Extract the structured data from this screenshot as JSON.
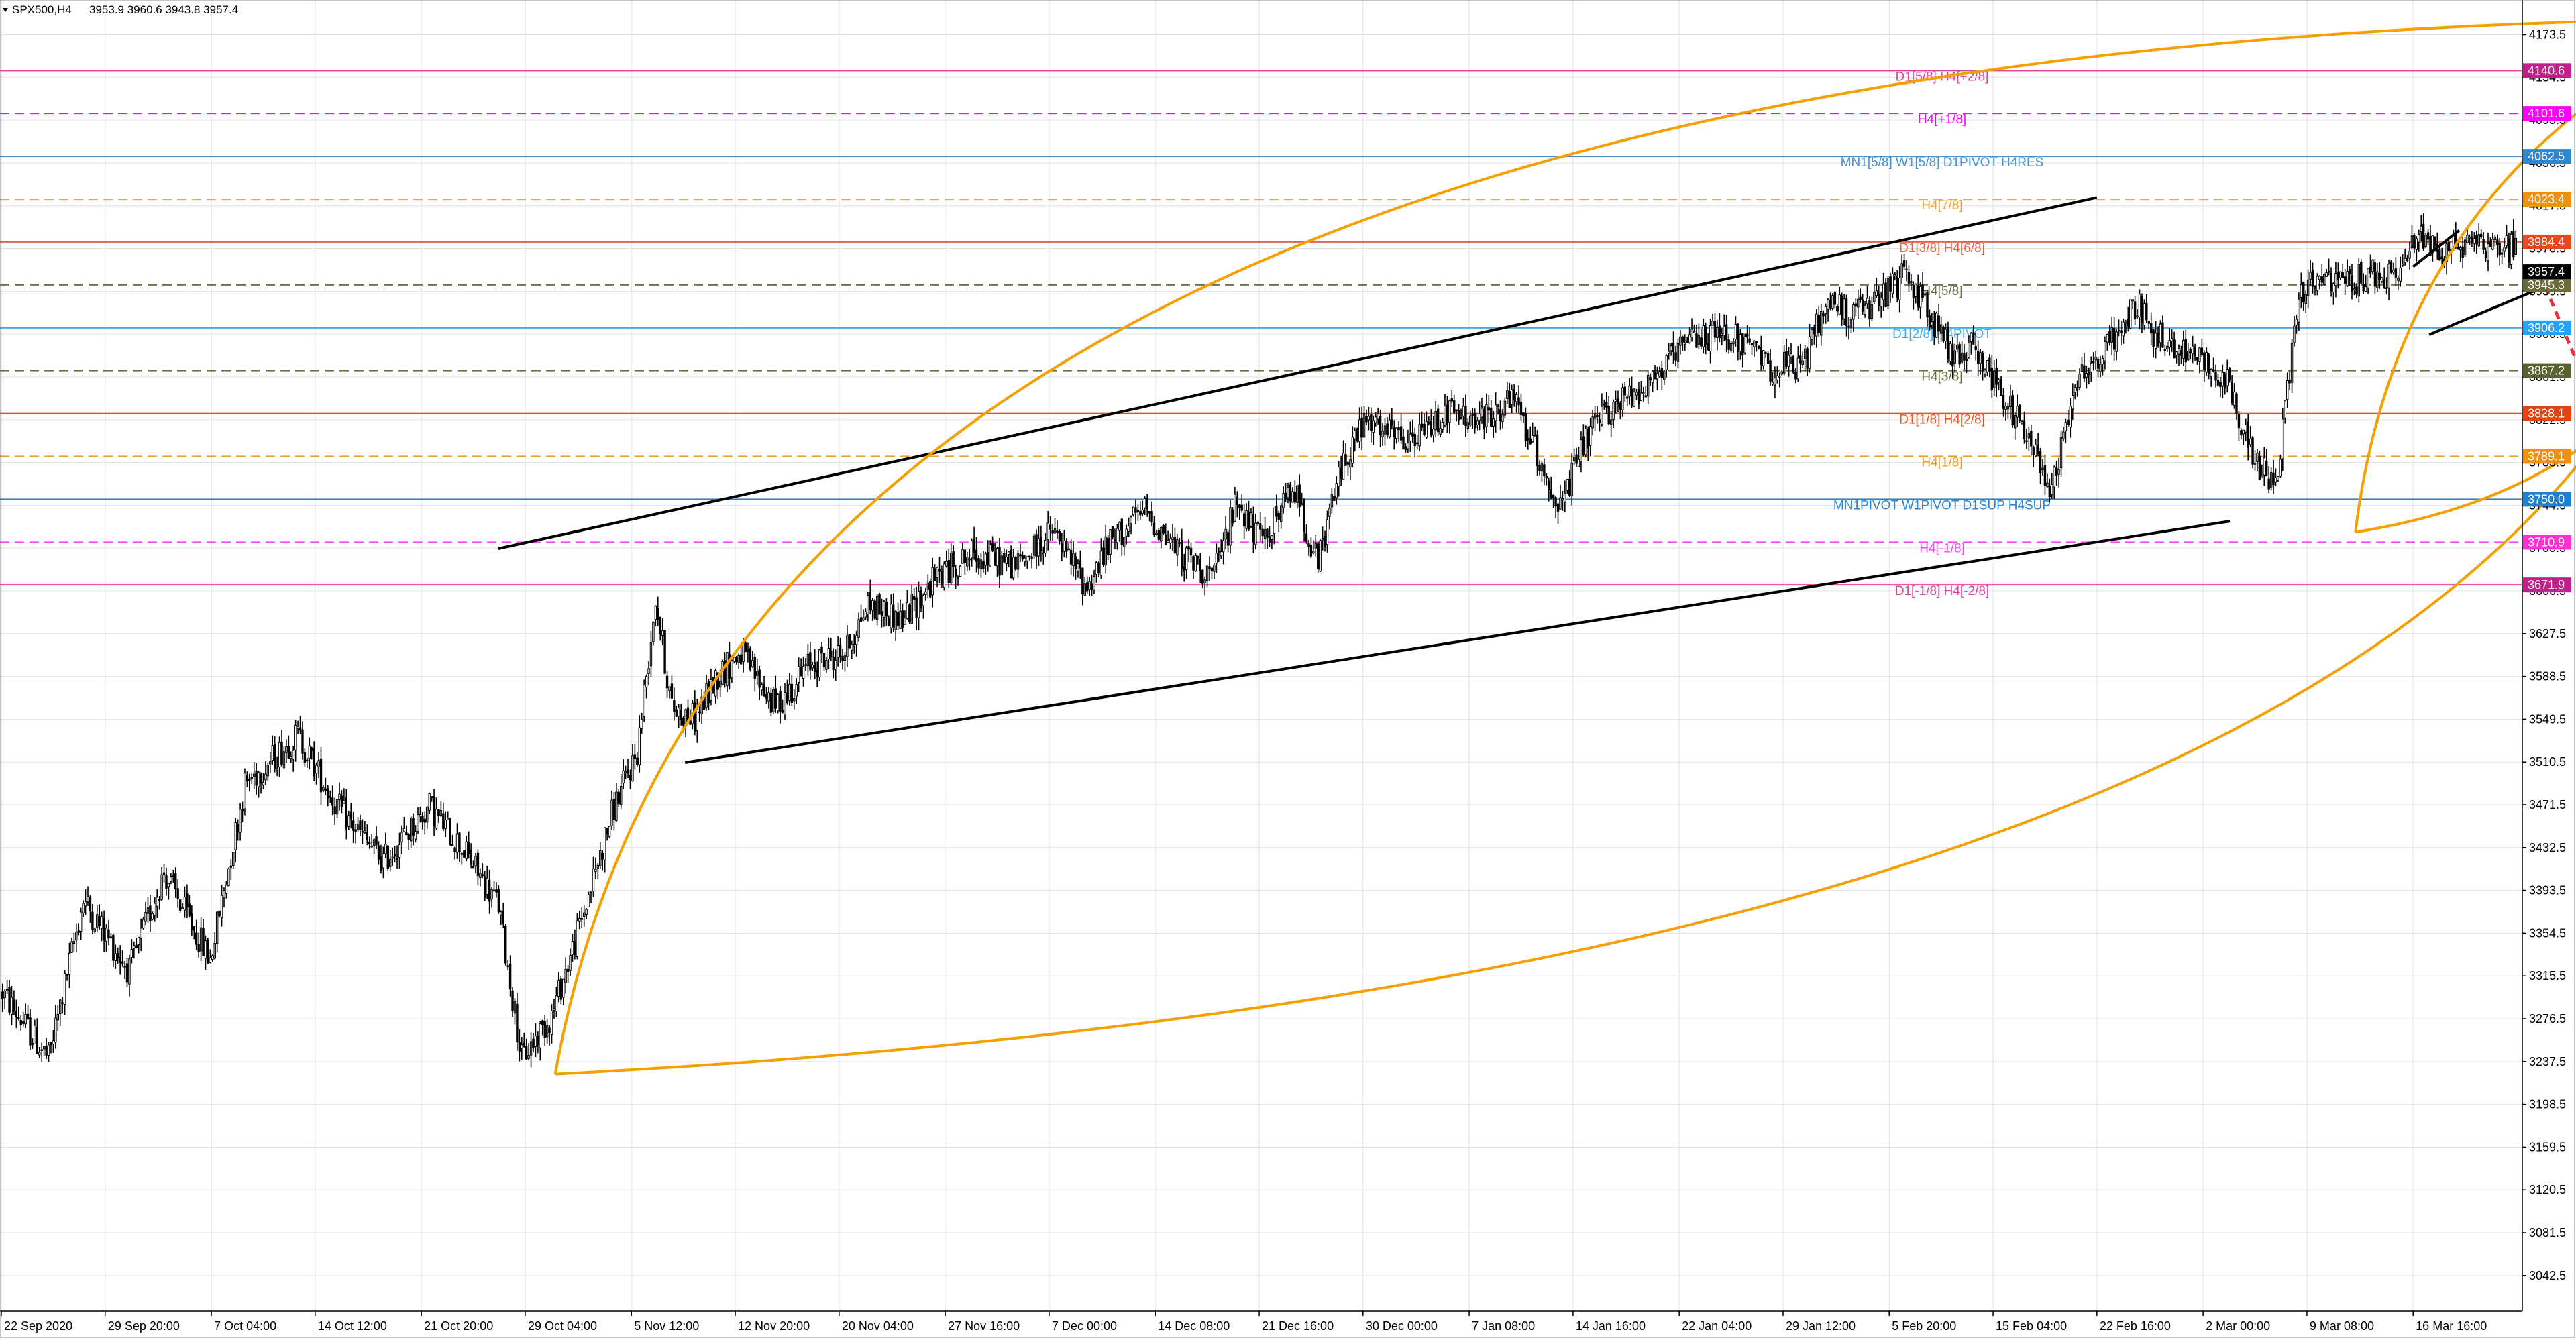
{
  "header": {
    "symbol_timeframe": "SPX500,H4",
    "ohlc": "3953.9 3960.6 3943.8 3957.4"
  },
  "chart_data": {
    "type": "candlestick",
    "symbol": "SPX500",
    "timeframe": "H4",
    "last_bar": {
      "open": 3953.9,
      "high": 3960.6,
      "low": 3943.8,
      "close": 3957.4
    },
    "current_price": 3957.4,
    "ylim": [
      3010,
      4205
    ],
    "price_scale_ticks": [
      4173.5,
      4134.5,
      4095.5,
      4056.5,
      4017.5,
      3978.5,
      3939.5,
      3900.5,
      3861.5,
      3822.5,
      3783.5,
      3744.5,
      3705.5,
      3666.5,
      3627.5,
      3588.5,
      3549.5,
      3510.5,
      3471.5,
      3432.5,
      3393.5,
      3354.5,
      3315.5,
      3276.5,
      3237.5,
      3198.5,
      3159.5,
      3120.5,
      3081.5,
      3042.5
    ],
    "time_labels": [
      "22 Sep 2020",
      "29 Sep 20:00",
      "7 Oct 04:00",
      "14 Oct 12:00",
      "21 Oct 20:00",
      "29 Oct 04:00",
      "5 Nov 12:00",
      "12 Nov 20:00",
      "20 Nov 04:00",
      "27 Nov 16:00",
      "7 Dec 00:00",
      "14 Dec 08:00",
      "21 Dec 16:00",
      "30 Dec 00:00",
      "7 Jan 08:00",
      "14 Jan 16:00",
      "22 Jan 04:00",
      "29 Jan 12:00",
      "5 Feb 20:00",
      "15 Feb 04:00",
      "22 Feb 16:00",
      "2 Mar 00:00",
      "9 Mar 08:00",
      "16 Mar 16:00"
    ],
    "price_path": [
      [
        0,
        3300
      ],
      [
        20,
        3240
      ],
      [
        35,
        3385
      ],
      [
        55,
        3320
      ],
      [
        70,
        3410
      ],
      [
        90,
        3330
      ],
      [
        105,
        3490
      ],
      [
        128,
        3535
      ],
      [
        145,
        3470
      ],
      [
        165,
        3420
      ],
      [
        185,
        3470
      ],
      [
        200,
        3430
      ],
      [
        215,
        3380
      ],
      [
        225,
        3240
      ],
      [
        238,
        3280
      ],
      [
        250,
        3360
      ],
      [
        265,
        3470
      ],
      [
        275,
        3520
      ],
      [
        283,
        3660
      ],
      [
        290,
        3560
      ],
      [
        300,
        3550
      ],
      [
        310,
        3590
      ],
      [
        320,
        3610
      ],
      [
        335,
        3560
      ],
      [
        350,
        3600
      ],
      [
        365,
        3610
      ],
      [
        375,
        3655
      ],
      [
        390,
        3640
      ],
      [
        405,
        3680
      ],
      [
        420,
        3700
      ],
      [
        440,
        3690
      ],
      [
        455,
        3720
      ],
      [
        470,
        3670
      ],
      [
        480,
        3710
      ],
      [
        495,
        3740
      ],
      [
        510,
        3700
      ],
      [
        525,
        3680
      ],
      [
        535,
        3750
      ],
      [
        545,
        3710
      ],
      [
        560,
        3760
      ],
      [
        570,
        3690
      ],
      [
        580,
        3780
      ],
      [
        590,
        3820
      ],
      [
        610,
        3800
      ],
      [
        625,
        3830
      ],
      [
        640,
        3820
      ],
      [
        655,
        3840
      ],
      [
        665,
        3790
      ],
      [
        675,
        3740
      ],
      [
        685,
        3800
      ],
      [
        695,
        3830
      ],
      [
        715,
        3860
      ],
      [
        735,
        3900
      ],
      [
        750,
        3900
      ],
      [
        765,
        3870
      ],
      [
        780,
        3870
      ],
      [
        790,
        3930
      ],
      [
        800,
        3920
      ],
      [
        810,
        3925
      ],
      [
        825,
        3955
      ],
      [
        835,
        3920
      ],
      [
        845,
        3880
      ],
      [
        855,
        3890
      ],
      [
        865,
        3850
      ],
      [
        870,
        3830
      ],
      [
        880,
        3800
      ],
      [
        888,
        3760
      ],
      [
        898,
        3860
      ],
      [
        910,
        3880
      ],
      [
        925,
        3930
      ],
      [
        930,
        3905
      ],
      [
        940,
        3890
      ],
      [
        955,
        3875
      ],
      [
        965,
        3855
      ],
      [
        975,
        3790
      ],
      [
        985,
        3760
      ],
      [
        995,
        3940
      ],
      [
        1005,
        3950
      ],
      [
        1015,
        3945
      ],
      [
        1025,
        3955
      ],
      [
        1035,
        3950
      ],
      [
        1048,
        3990
      ],
      [
        1060,
        3975
      ],
      [
        1070,
        3990
      ],
      [
        1080,
        3980
      ]
    ],
    "channel_upper": {
      "from": [
        "29 Oct 04:00",
        3705
      ],
      "to": [
        "22 Feb 16:00",
        4025
      ]
    },
    "channel_lower": {
      "from": [
        "5 Nov 12:00",
        3510
      ],
      "to": [
        "2 Mar 00:00",
        3730
      ]
    },
    "levels": [
      {
        "price": 4140.6,
        "label": "D1[5/8] H4[+2/8]",
        "color": "#e040a0",
        "dashed": false,
        "tag": "4140.6",
        "tag_bg": "#c0208a"
      },
      {
        "price": 4101.6,
        "label": "H4[+1/8]",
        "color": "#ff00ff",
        "dashed": true,
        "tag": "4101.6",
        "tag_bg": "#ff00ff"
      },
      {
        "price": 4062.5,
        "label": "MN1[5/8] W1[5/8] D1PIVOT H4RES",
        "color": "#3f95d8",
        "dashed": false,
        "tag": "4062.5",
        "tag_bg": "#2f86d0"
      },
      {
        "price": 4023.4,
        "label": "H4[7/8]",
        "color": "#f0a030",
        "dashed": true,
        "tag": "4023.4",
        "tag_bg": "#f09010"
      },
      {
        "price": 3984.4,
        "label": "D1[3/8] H4[6/8]",
        "color": "#f06040",
        "dashed": false,
        "tag": "3984.4",
        "tag_bg": "#e84820"
      },
      {
        "price": 3945.3,
        "label": "H4[5/8]",
        "color": "#707050",
        "dashed": true,
        "tag": "3945.3",
        "tag_bg": "#6a6a3a"
      },
      {
        "price": 3906.2,
        "label": "D1[2/8] H4PIVOT",
        "color": "#3ab0f0",
        "dashed": false,
        "tag": "3906.2",
        "tag_bg": "#2aa0f0"
      },
      {
        "price": 3867.2,
        "label": "H4[3/8]",
        "color": "#6a7040",
        "dashed": true,
        "tag": "3867.2",
        "tag_bg": "#5a6030"
      },
      {
        "price": 3828.1,
        "label": "D1[1/8] H4[2/8]",
        "color": "#f05020",
        "dashed": false,
        "tag": "3828.1",
        "tag_bg": "#e84010"
      },
      {
        "price": 3789.1,
        "label": "H4[1/8]",
        "color": "#f0a020",
        "dashed": true,
        "tag": "3789.1",
        "tag_bg": "#f09010"
      },
      {
        "price": 3750.0,
        "label": "MN1PIVOT W1PIVOT D1SUP H4SUP",
        "color": "#2f86d0",
        "dashed": false,
        "tag": "3750.0",
        "tag_bg": "#2080d0"
      },
      {
        "price": 3710.9,
        "label": "H4[-1/8]",
        "color": "#ff40ff",
        "dashed": true,
        "tag": "3710.9",
        "tag_bg": "#ff30d0"
      },
      {
        "price": 3671.9,
        "label": "D1[-1/8] H4[-2/8]",
        "color": "#e040a0",
        "dashed": false,
        "tag": "3671.9",
        "tag_bg": "#c0208a"
      }
    ],
    "current_tag_bg": "#000000",
    "colors": {
      "candle": "#000000",
      "grid": "#e2e2e2",
      "channel": "#000000",
      "arc": "#f5a000",
      "forecast": "#e8303a",
      "axis_text": "#000000"
    }
  }
}
